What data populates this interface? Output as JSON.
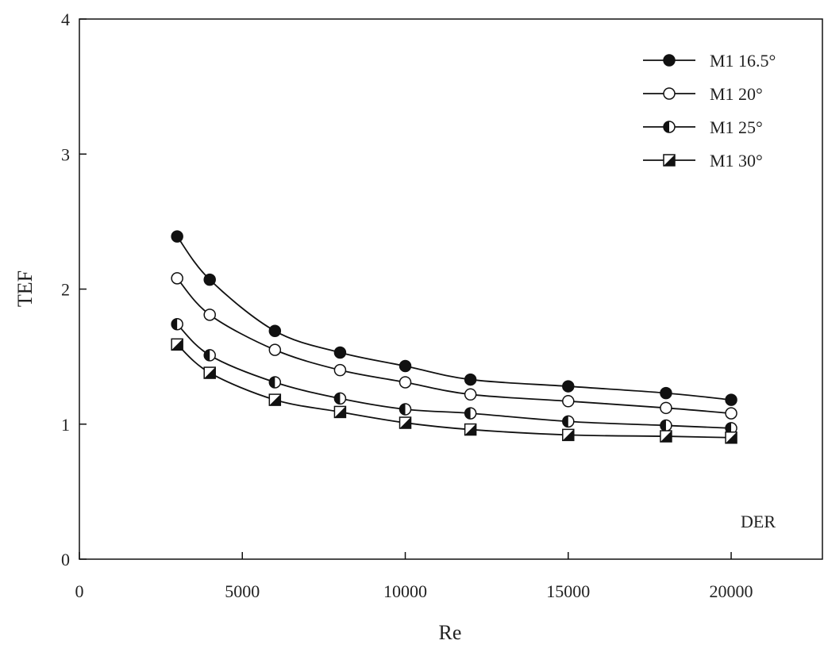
{
  "chart_data": {
    "type": "line",
    "x_label": "Re",
    "y_label": "TEF",
    "annotation": "DER",
    "x": [
      3000,
      4000,
      6000,
      8000,
      10000,
      12000,
      15000,
      18000,
      20000
    ],
    "series": [
      {
        "name": "M1 16.5°",
        "color": "#111111",
        "marker": "filled-circle",
        "values": [
          2.39,
          2.07,
          1.69,
          1.53,
          1.43,
          1.33,
          1.28,
          1.23,
          1.18
        ]
      },
      {
        "name": "M1 20°",
        "color": "#111111",
        "marker": "open-circle",
        "values": [
          2.08,
          1.81,
          1.55,
          1.4,
          1.31,
          1.22,
          1.17,
          1.12,
          1.08
        ]
      },
      {
        "name": "M1 25°",
        "color": "#111111",
        "marker": "half-circle",
        "values": [
          1.74,
          1.51,
          1.31,
          1.19,
          1.11,
          1.08,
          1.02,
          0.99,
          0.97
        ]
      },
      {
        "name": "M1 30°",
        "color": "#111111",
        "marker": "half-square",
        "values": [
          1.59,
          1.38,
          1.18,
          1.09,
          1.01,
          0.96,
          0.92,
          0.91,
          0.9
        ]
      }
    ],
    "xlim": [
      0,
      22800
    ],
    "ylim": [
      0,
      4
    ],
    "xticks": [
      0,
      5000,
      10000,
      15000,
      20000
    ],
    "yticks": [
      0,
      1,
      2,
      3,
      4
    ],
    "legend": "upper-right",
    "grid": false
  }
}
